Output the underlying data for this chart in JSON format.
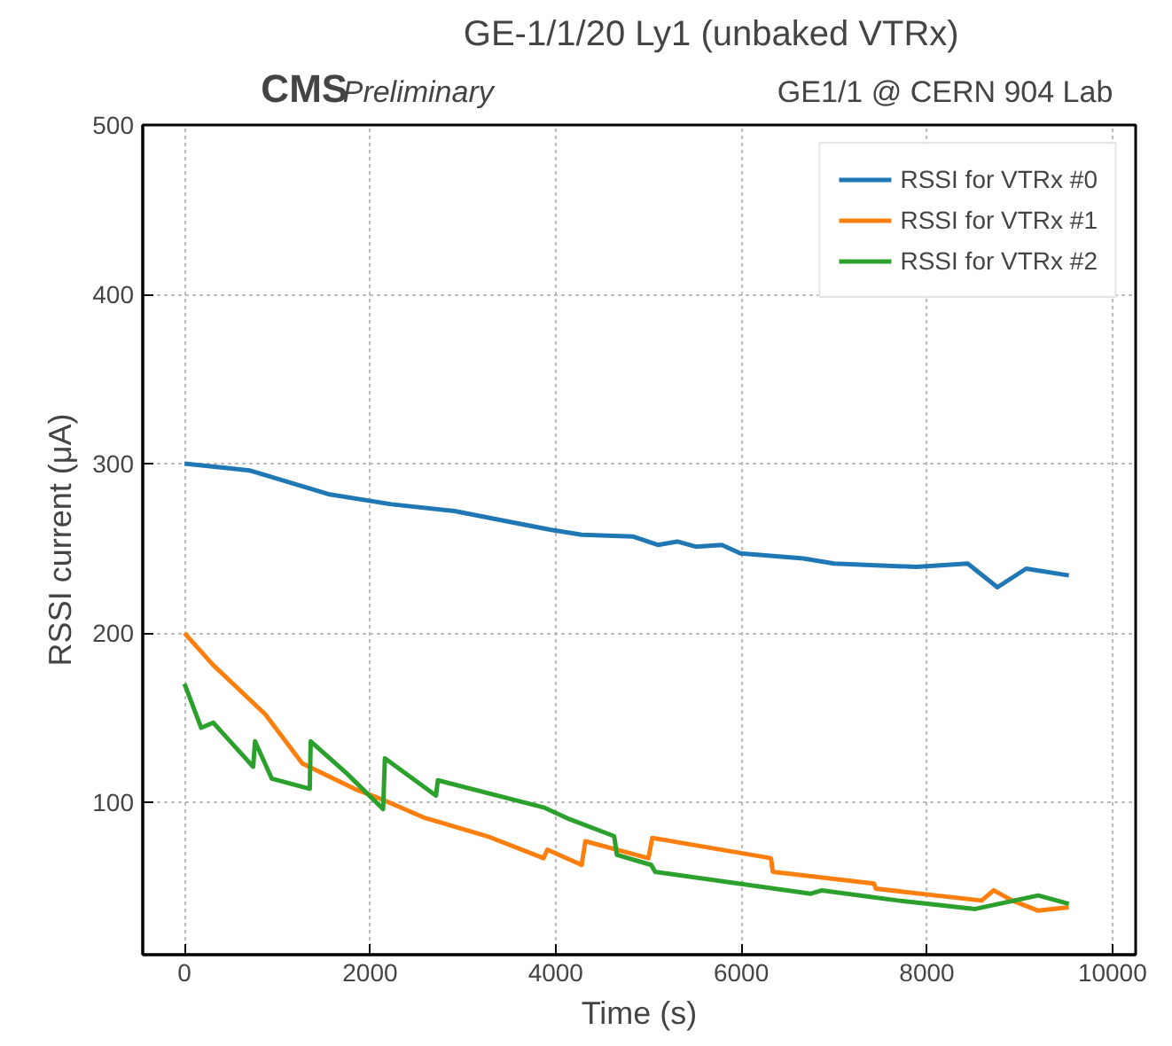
{
  "chart_data": {
    "type": "line",
    "title": "GE-1/1/20 Ly1 (unbaked VTRx)",
    "xlabel": "Time (s)",
    "ylabel": "RSSI current (μA)",
    "annotations": [
      "CMS",
      "Preliminary",
      "GE1/1 @ CERN 904 Lab"
    ],
    "xlim": [
      -450,
      10250
    ],
    "ylim": [
      10,
      500
    ],
    "xticks": [
      0,
      2000,
      4000,
      6000,
      8000,
      10000
    ],
    "yticks": [
      100,
      200,
      300,
      400,
      500
    ],
    "grid": true,
    "legend": "top right",
    "line_style": "solid",
    "marker": "none",
    "series": [
      {
        "name": "RSSI for VTRx #0",
        "color": "#1f77b4",
        "x": [
          0,
          525,
          700,
          1550,
          2230,
          2910,
          3470,
          3940,
          4280,
          4830,
          5100,
          5310,
          5510,
          5790,
          5990,
          6670,
          7000,
          7890,
          8440,
          8760,
          9070,
          9530
        ],
        "values": [
          300,
          297,
          296,
          282,
          276,
          272,
          266,
          261,
          258,
          257,
          252,
          254,
          251,
          252,
          247,
          244,
          241,
          239,
          241,
          227,
          238,
          234
        ]
      },
      {
        "name": "RSSI for VTRx #1",
        "color": "#ff7f0e",
        "x": [
          0,
          310,
          870,
          1270,
          1830,
          2160,
          2580,
          3260,
          3870,
          3910,
          4280,
          4320,
          5000,
          5040,
          6320,
          6340,
          7430,
          7450,
          8590,
          8720,
          8920,
          9200,
          9530
        ],
        "values": [
          200,
          181,
          152,
          123,
          108,
          101,
          91,
          80,
          67,
          72,
          63,
          77,
          67,
          79,
          67,
          59,
          52,
          49,
          42,
          48,
          42,
          36,
          38
        ]
      },
      {
        "name": "RSSI for VTRx #2",
        "color": "#2ca02c",
        "x": [
          0,
          180,
          310,
          740,
          760,
          940,
          1350,
          1360,
          1750,
          2140,
          2160,
          2710,
          2730,
          3870,
          4150,
          4630,
          4660,
          5030,
          5070,
          6750,
          6870,
          7690,
          8520,
          9200,
          9530
        ],
        "values": [
          170,
          144,
          147,
          121,
          136,
          114,
          108,
          136,
          117,
          96,
          126,
          104,
          113,
          97,
          90,
          80,
          69,
          63,
          59,
          46,
          48,
          42,
          37,
          45,
          40
        ]
      }
    ]
  }
}
